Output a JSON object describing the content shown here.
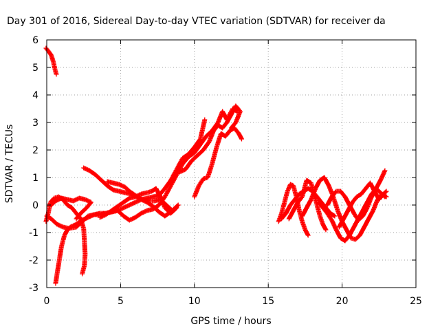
{
  "chart_data": {
    "type": "scatter",
    "title": "Day 301 of 2016, Sidereal Day-to-day VTEC variation (SDTVAR) for receiver da",
    "xlabel": "GPS time / hours",
    "ylabel": "SDTVAR / TECUs",
    "xlim": [
      0,
      25
    ],
    "ylim": [
      -3,
      6
    ],
    "xticks": [
      0,
      5,
      10,
      15,
      20,
      25
    ],
    "yticks": [
      -3,
      -2,
      -1,
      0,
      1,
      2,
      3,
      4,
      5,
      6
    ],
    "grid": true,
    "marker": "plus",
    "marker_color": "#ff0000",
    "traces": [
      [
        [
          -0.05,
          5.7
        ],
        [
          0.1,
          5.6
        ],
        [
          0.3,
          5.45
        ],
        [
          0.45,
          5.2
        ],
        [
          0.55,
          4.95
        ],
        [
          0.65,
          4.75
        ]
      ],
      [
        [
          0.6,
          -2.85
        ],
        [
          0.7,
          -2.5
        ],
        [
          0.85,
          -2.0
        ],
        [
          1.0,
          -1.5
        ],
        [
          1.2,
          -1.1
        ],
        [
          1.4,
          -0.9
        ],
        [
          1.6,
          -0.8
        ],
        [
          2.0,
          -0.7
        ],
        [
          2.4,
          -0.55
        ],
        [
          2.8,
          -0.45
        ],
        [
          3.2,
          -0.35
        ],
        [
          3.6,
          -0.3
        ],
        [
          4.0,
          -0.3
        ],
        [
          4.4,
          -0.25
        ],
        [
          4.8,
          -0.2
        ],
        [
          5.2,
          -0.1
        ],
        [
          5.6,
          0.0
        ],
        [
          6.0,
          0.1
        ],
        [
          6.4,
          0.2
        ],
        [
          6.8,
          0.25
        ],
        [
          7.2,
          0.3
        ],
        [
          7.6,
          0.35
        ],
        [
          8.0,
          0.6
        ],
        [
          8.4,
          0.9
        ],
        [
          8.8,
          1.3
        ],
        [
          9.2,
          1.7
        ],
        [
          9.6,
          1.85
        ],
        [
          10.0,
          2.1
        ],
        [
          10.4,
          2.4
        ],
        [
          10.7,
          3.1
        ]
      ],
      [
        [
          -0.05,
          -0.6
        ],
        [
          0.1,
          -0.3
        ],
        [
          0.25,
          0.1
        ],
        [
          0.5,
          0.25
        ],
        [
          0.8,
          0.3
        ],
        [
          1.1,
          0.2
        ],
        [
          1.4,
          0.0
        ],
        [
          1.7,
          -0.1
        ],
        [
          2.0,
          -0.3
        ],
        [
          2.3,
          -0.5
        ],
        [
          2.5,
          -0.85
        ],
        [
          2.55,
          -1.3
        ],
        [
          2.6,
          -1.8
        ],
        [
          2.55,
          -2.2
        ],
        [
          2.4,
          -2.5
        ]
      ],
      [
        [
          0.0,
          -0.4
        ],
        [
          0.3,
          -0.5
        ],
        [
          0.7,
          -0.7
        ],
        [
          1.1,
          -0.8
        ],
        [
          1.5,
          -0.85
        ],
        [
          2.0,
          -0.8
        ],
        [
          2.4,
          -0.6
        ],
        [
          2.8,
          -0.4
        ],
        [
          3.2,
          -0.35
        ],
        [
          3.6,
          -0.35
        ],
        [
          4.0,
          -0.3
        ],
        [
          4.4,
          -0.25
        ],
        [
          4.8,
          -0.2
        ],
        [
          5.2,
          -0.4
        ],
        [
          5.6,
          -0.55
        ],
        [
          6.0,
          -0.45
        ],
        [
          6.4,
          -0.3
        ],
        [
          6.8,
          -0.2
        ],
        [
          7.2,
          -0.15
        ],
        [
          7.6,
          0.0
        ],
        [
          8.0,
          0.3
        ],
        [
          8.4,
          0.7
        ],
        [
          8.8,
          1.1
        ],
        [
          9.2,
          1.5
        ],
        [
          9.6,
          1.75
        ],
        [
          10.0,
          1.9
        ],
        [
          10.4,
          2.2
        ],
        [
          10.8,
          2.5
        ],
        [
          11.2,
          2.7
        ],
        [
          11.6,
          3.0
        ],
        [
          11.9,
          3.4
        ],
        [
          12.2,
          3.1
        ],
        [
          12.6,
          3.5
        ],
        [
          12.9,
          3.4
        ]
      ],
      [
        [
          0.3,
          0.0
        ],
        [
          0.6,
          0.15
        ],
        [
          1.0,
          0.25
        ],
        [
          1.4,
          0.2
        ],
        [
          1.8,
          0.15
        ],
        [
          2.2,
          0.25
        ],
        [
          2.6,
          0.2
        ],
        [
          3.0,
          0.1
        ],
        [
          2.7,
          -0.1
        ],
        [
          2.3,
          -0.3
        ],
        [
          2.0,
          -0.5
        ]
      ],
      [
        [
          2.5,
          1.35
        ],
        [
          2.9,
          1.25
        ],
        [
          3.3,
          1.1
        ],
        [
          3.7,
          0.9
        ],
        [
          4.1,
          0.7
        ],
        [
          4.5,
          0.55
        ],
        [
          4.9,
          0.5
        ],
        [
          5.3,
          0.45
        ],
        [
          5.7,
          0.4
        ],
        [
          6.1,
          0.3
        ],
        [
          6.5,
          0.2
        ],
        [
          6.9,
          0.15
        ],
        [
          7.3,
          0.15
        ],
        [
          7.7,
          0.2
        ],
        [
          8.1,
          0.0
        ],
        [
          8.5,
          -0.2
        ],
        [
          8.9,
          0.0
        ]
      ],
      [
        [
          4.1,
          0.85
        ],
        [
          4.5,
          0.8
        ],
        [
          4.9,
          0.75
        ],
        [
          5.3,
          0.65
        ],
        [
          5.6,
          0.5
        ],
        [
          6.0,
          0.35
        ],
        [
          6.4,
          0.2
        ],
        [
          6.8,
          0.1
        ],
        [
          7.2,
          -0.05
        ],
        [
          7.6,
          -0.25
        ],
        [
          8.0,
          -0.4
        ],
        [
          8.4,
          -0.25
        ]
      ],
      [
        [
          3.6,
          -0.45
        ],
        [
          4.0,
          -0.35
        ],
        [
          4.4,
          -0.2
        ],
        [
          4.8,
          -0.05
        ],
        [
          5.2,
          0.1
        ],
        [
          5.6,
          0.25
        ],
        [
          6.0,
          0.3
        ],
        [
          6.4,
          0.4
        ],
        [
          6.8,
          0.45
        ],
        [
          7.1,
          0.5
        ],
        [
          7.4,
          0.6
        ],
        [
          7.7,
          0.3
        ],
        [
          8.0,
          -0.1
        ],
        [
          8.4,
          -0.3
        ],
        [
          8.8,
          -0.1
        ]
      ],
      [
        [
          10.0,
          0.3
        ],
        [
          10.3,
          0.7
        ],
        [
          10.6,
          0.95
        ],
        [
          10.9,
          1.0
        ],
        [
          11.2,
          1.5
        ],
        [
          11.5,
          2.1
        ],
        [
          11.8,
          2.6
        ],
        [
          12.1,
          2.5
        ],
        [
          12.4,
          2.7
        ],
        [
          12.7,
          2.8
        ],
        [
          13.0,
          2.6
        ],
        [
          13.2,
          2.4
        ]
      ],
      [
        [
          9.0,
          1.2
        ],
        [
          9.4,
          1.3
        ],
        [
          9.8,
          1.6
        ],
        [
          10.2,
          1.8
        ],
        [
          10.6,
          2.0
        ],
        [
          11.0,
          2.3
        ],
        [
          11.3,
          2.7
        ],
        [
          11.6,
          2.9
        ],
        [
          11.9,
          2.8
        ],
        [
          12.2,
          3.0
        ],
        [
          12.5,
          3.3
        ],
        [
          12.8,
          3.6
        ],
        [
          13.1,
          3.4
        ],
        [
          12.8,
          3.0
        ],
        [
          12.5,
          2.8
        ]
      ],
      [
        [
          15.7,
          -0.6
        ],
        [
          15.9,
          -0.3
        ],
        [
          16.1,
          0.1
        ],
        [
          16.3,
          0.5
        ],
        [
          16.5,
          0.75
        ],
        [
          16.7,
          0.7
        ],
        [
          16.9,
          0.3
        ],
        [
          17.1,
          -0.2
        ],
        [
          17.3,
          -0.6
        ],
        [
          17.5,
          -0.9
        ],
        [
          17.7,
          -1.1
        ]
      ],
      [
        [
          15.9,
          -0.5
        ],
        [
          16.2,
          -0.3
        ],
        [
          16.5,
          0.0
        ],
        [
          16.8,
          0.2
        ],
        [
          17.1,
          0.4
        ],
        [
          17.4,
          0.5
        ],
        [
          17.7,
          0.6
        ],
        [
          18.0,
          0.5
        ],
        [
          18.3,
          0.3
        ],
        [
          18.6,
          0.1
        ],
        [
          18.9,
          -0.1
        ],
        [
          19.2,
          -0.3
        ],
        [
          19.5,
          -0.4
        ]
      ],
      [
        [
          16.4,
          -0.5
        ],
        [
          16.7,
          -0.2
        ],
        [
          17.0,
          0.1
        ],
        [
          17.3,
          0.3
        ],
        [
          17.6,
          0.9
        ],
        [
          17.9,
          0.8
        ],
        [
          18.1,
          0.4
        ],
        [
          18.3,
          0.0
        ],
        [
          18.5,
          -0.4
        ],
        [
          18.7,
          -0.7
        ],
        [
          18.9,
          -0.9
        ]
      ],
      [
        [
          17.3,
          -0.4
        ],
        [
          17.6,
          -0.1
        ],
        [
          17.9,
          0.2
        ],
        [
          18.2,
          0.6
        ],
        [
          18.5,
          0.9
        ],
        [
          18.8,
          1.0
        ],
        [
          19.1,
          0.7
        ],
        [
          19.4,
          0.3
        ],
        [
          19.7,
          -0.2
        ],
        [
          20.0,
          -0.6
        ],
        [
          20.3,
          -0.9
        ],
        [
          20.6,
          -1.2
        ],
        [
          20.9,
          -1.25
        ],
        [
          21.2,
          -1.1
        ],
        [
          21.5,
          -0.8
        ],
        [
          21.8,
          -0.5
        ],
        [
          22.1,
          -0.2
        ],
        [
          22.4,
          0.2
        ],
        [
          22.7,
          0.4
        ],
        [
          23.0,
          0.3
        ]
      ],
      [
        [
          18.4,
          0.1
        ],
        [
          18.7,
          -0.1
        ],
        [
          19.0,
          -0.3
        ],
        [
          19.3,
          -0.55
        ],
        [
          19.6,
          -0.9
        ],
        [
          19.9,
          -1.2
        ],
        [
          20.2,
          -1.3
        ],
        [
          20.5,
          -1.1
        ],
        [
          20.8,
          -0.8
        ],
        [
          21.1,
          -0.5
        ],
        [
          21.4,
          -0.2
        ],
        [
          21.7,
          0.1
        ],
        [
          22.0,
          0.4
        ],
        [
          22.3,
          0.6
        ],
        [
          22.6,
          0.9
        ],
        [
          22.9,
          1.25
        ]
      ],
      [
        [
          19.0,
          0.0
        ],
        [
          19.3,
          0.3
        ],
        [
          19.6,
          0.5
        ],
        [
          19.9,
          0.5
        ],
        [
          20.2,
          0.3
        ],
        [
          20.5,
          0.0
        ],
        [
          20.8,
          -0.3
        ],
        [
          21.1,
          -0.55
        ],
        [
          21.4,
          -0.4
        ],
        [
          21.7,
          -0.1
        ],
        [
          22.0,
          0.3
        ],
        [
          22.3,
          0.6
        ],
        [
          22.6,
          0.45
        ],
        [
          22.9,
          0.3
        ]
      ],
      [
        [
          19.8,
          -0.8
        ],
        [
          20.1,
          -0.5
        ],
        [
          20.4,
          -0.2
        ],
        [
          20.7,
          0.1
        ],
        [
          21.0,
          0.3
        ],
        [
          21.3,
          0.4
        ],
        [
          21.6,
          0.6
        ],
        [
          21.9,
          0.8
        ],
        [
          22.2,
          0.5
        ],
        [
          22.5,
          0.2
        ],
        [
          22.8,
          0.4
        ],
        [
          23.0,
          0.5
        ]
      ]
    ]
  }
}
